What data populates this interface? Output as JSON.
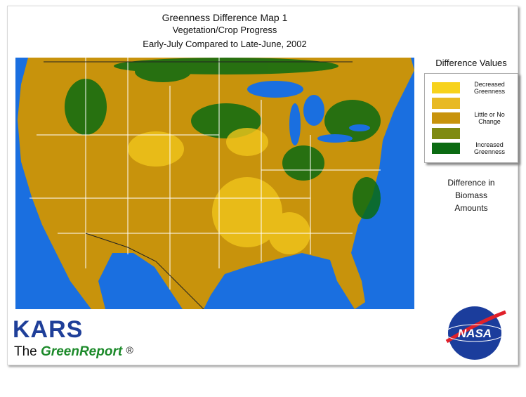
{
  "title": {
    "line1": "Greenness Difference Map 1",
    "line2": "Vegetation/Crop Progress",
    "line3": "Early-July Compared to Late-June, 2002"
  },
  "legend": {
    "title": "Difference Values",
    "items": [
      {
        "color": "#f7d21c",
        "label": "Decreased Greenness"
      },
      {
        "color": "#e8b923"
      },
      {
        "color": "#c8930c",
        "label": "Little or No Change"
      },
      {
        "color": "#7f8a12"
      },
      {
        "color": "#0b6b12",
        "label": "Increased Greenness"
      }
    ]
  },
  "note": [
    "Difference in",
    "Biomass",
    "Amounts"
  ],
  "branding": {
    "kars": "KARS",
    "the": "The",
    "greenreport": "GreenReport",
    "registered": "®",
    "nasa": "NASA"
  }
}
